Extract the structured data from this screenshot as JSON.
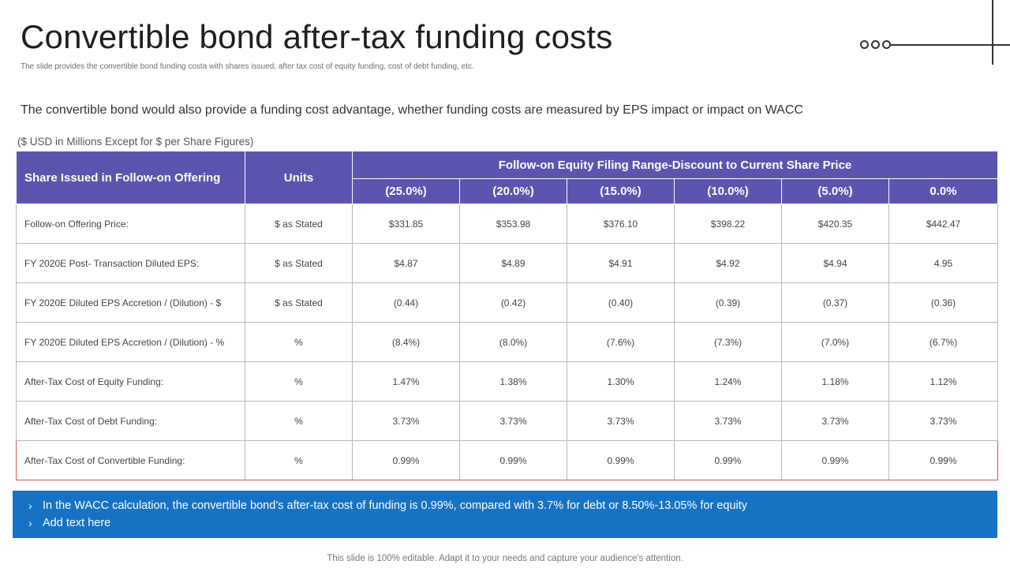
{
  "title": "Convertible bond after-tax funding costs",
  "subtitle": "The slide provides the convertible bond funding costa with shares issued, after tax cost of equity funding, cost of debt funding, etc.",
  "lead": "The convertible bond would also provide a funding cost advantage, whether funding costs are measured by EPS impact or impact on WACC",
  "units_note": "($ USD  in Millions Except for $ per Share Figures)",
  "table": {
    "header_label": "Share Issued in Follow-on Offering",
    "header_units": "Units",
    "header_group": "Follow-on Equity Filing Range-Discount to Current Share Price",
    "columns": [
      "(25.0%)",
      "(20.0%)",
      "(15.0%)",
      "(10.0%)",
      "(5.0%)",
      "0.0%"
    ],
    "rows": [
      {
        "label": "Follow-on Offering Price:",
        "units": "$ as Stated",
        "values": [
          "$331.85",
          "$353.98",
          "$376.10",
          "$398.22",
          "$420.35",
          "$442.47"
        ]
      },
      {
        "label": "FY 2020E Post- Transaction Diluted EPS:",
        "units": "$ as Stated",
        "values": [
          "$4.87",
          "$4.89",
          "$4.91",
          "$4.92",
          "$4.94",
          "4.95"
        ]
      },
      {
        "label": "FY 2020E Diluted EPS Accretion / (Dilution) - $",
        "units": "$ as Stated",
        "values": [
          "(0.44)",
          "(0.42)",
          "(0.40)",
          "(0.39)",
          "(0.37)",
          "(0.36)"
        ]
      },
      {
        "label": "FY 2020E Diluted EPS Accretion / (Dilution) - %",
        "units": "%",
        "values": [
          "(8.4%)",
          "(8.0%)",
          "(7.6%)",
          "(7.3%)",
          "(7.0%)",
          "(6.7%)"
        ]
      },
      {
        "label": "After-Tax  Cost of Equity Funding:",
        "units": "%",
        "values": [
          "1.47%",
          "1.38%",
          "1.30%",
          "1.24%",
          "1.18%",
          "1.12%"
        ]
      },
      {
        "label": "After-Tax  Cost of Debt Funding:",
        "units": "%",
        "values": [
          "3.73%",
          "3.73%",
          "3.73%",
          "3.73%",
          "3.73%",
          "3.73%"
        ]
      },
      {
        "label": "After-Tax  Cost of Convertible Funding:",
        "units": "%",
        "values": [
          "0.99%",
          "0.99%",
          "0.99%",
          "0.99%",
          "0.99%",
          "0.99%"
        ]
      }
    ]
  },
  "notes": [
    "In the WACC calculation, the convertible bond’s after-tax cost of funding is 0.99%, compared with 3.7% for debt or 8.50%-13.05% for equity",
    "Add text here"
  ],
  "footer": "This slide is 100% editable. Adapt it to your needs and capture your audience's attention.",
  "colors": {
    "header_bg": "#5b55b0",
    "note_bg": "#1572c4",
    "highlight_border": "#e05050"
  }
}
